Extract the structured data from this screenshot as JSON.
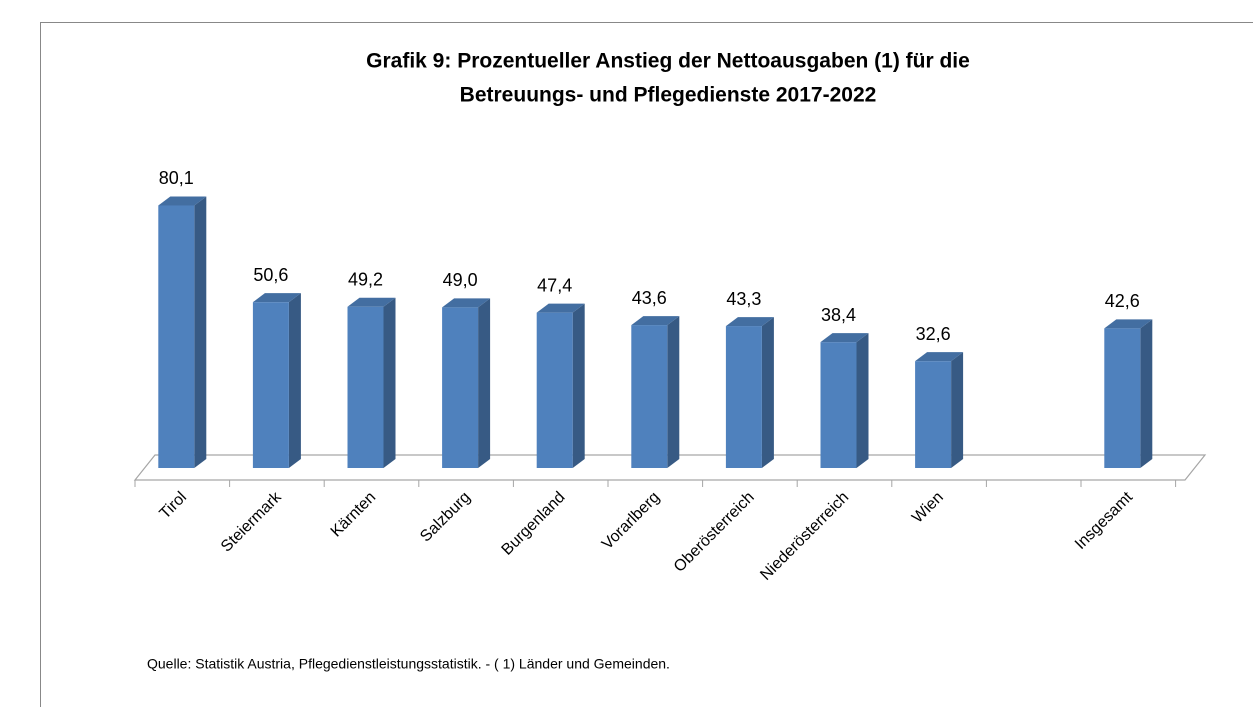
{
  "chart_data": {
    "type": "bar3d",
    "title": [
      "Grafik 9: Prozentueller Anstieg der Nettoausgaben (1) für die",
      "Betreuungs- und Pflegedienste 2017-2022"
    ],
    "categories": [
      "Tirol",
      "Steiermark",
      "Kärnten",
      "Salzburg",
      "Burgenland",
      "Vorarlberg",
      "Oberösterreich",
      "Niederösterreich",
      "Wien",
      null,
      "Insgesamt"
    ],
    "values": [
      80.1,
      50.6,
      49.2,
      49.0,
      47.4,
      43.6,
      43.3,
      38.4,
      32.6,
      null,
      42.6
    ],
    "value_labels": [
      "80,1",
      "50,6",
      "49,2",
      "49,0",
      "47,4",
      "43,6",
      "43,3",
      "38,4",
      "32,6",
      null,
      "42,6"
    ],
    "color": "#4f81bd",
    "ylim": [
      0,
      90
    ],
    "source": "Quelle: Statistik Austria, Pflegedienstleistungsstatistik.  - ( 1) Länder und Gemeinden."
  }
}
